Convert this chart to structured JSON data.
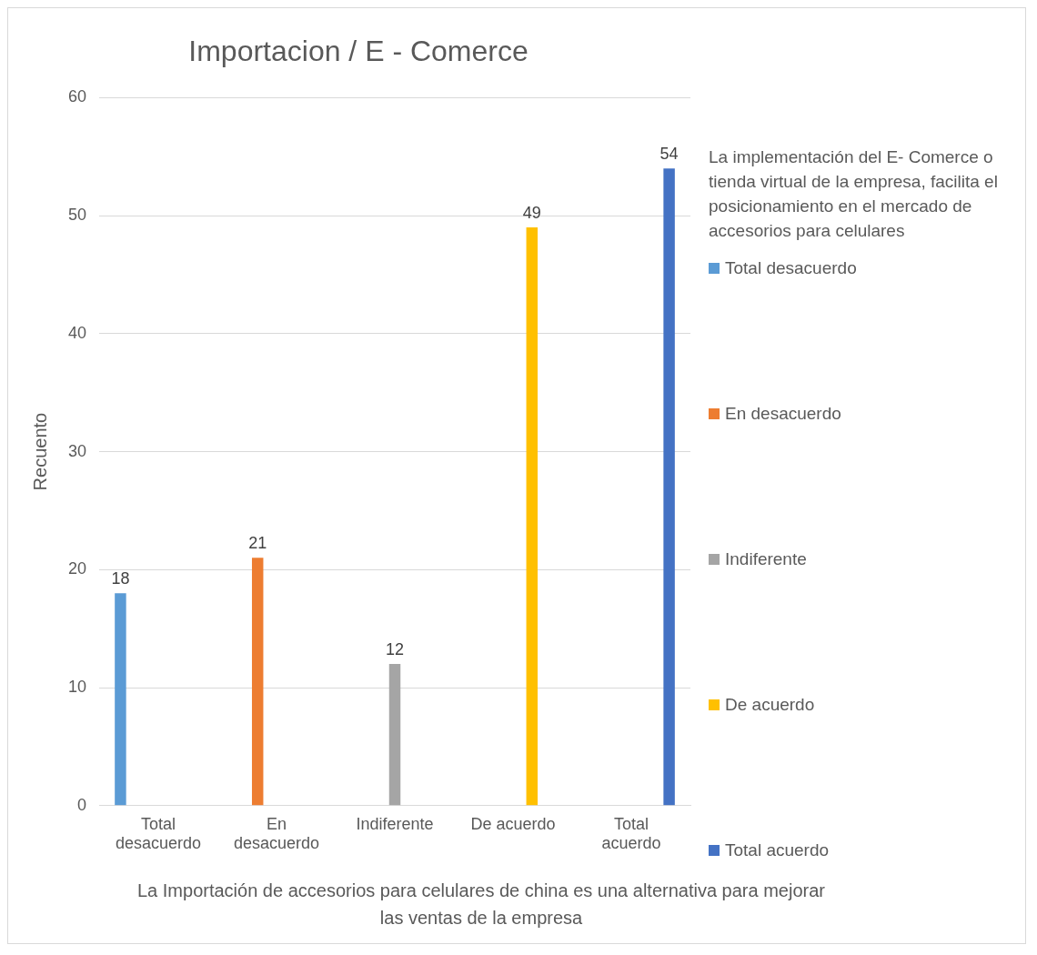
{
  "chart_data": {
    "type": "bar",
    "title": "Importacion / E - Comerce",
    "xlabel": "La Importación de accesorios para celulares de china es una alternativa para mejorar las ventas de la empresa",
    "ylabel": "Recuento",
    "legend_title": "La implementación del E- Comerce o tienda virtual de la empresa, facilita el posicionamiento en el mercado de accesorios para celulares",
    "categories": [
      "Total desacuerdo",
      "En desacuerdo",
      "Indiferente",
      "De acuerdo",
      "Total acuerdo"
    ],
    "series": [
      {
        "name": "Total desacuerdo",
        "color": "#5b9bd5",
        "values": [
          18,
          null,
          null,
          null,
          null
        ]
      },
      {
        "name": "En desacuerdo",
        "color": "#ed7d31",
        "values": [
          null,
          21,
          null,
          null,
          null
        ]
      },
      {
        "name": "Indiferente",
        "color": "#a5a5a5",
        "values": [
          null,
          null,
          12,
          null,
          null
        ]
      },
      {
        "name": "De acuerdo",
        "color": "#ffc000",
        "values": [
          null,
          null,
          null,
          49,
          null
        ]
      },
      {
        "name": "Total acuerdo",
        "color": "#4472c4",
        "values": [
          null,
          null,
          null,
          null,
          54
        ]
      }
    ],
    "ylim": [
      0,
      60
    ],
    "yticks": [
      0,
      10,
      20,
      30,
      40,
      50,
      60
    ],
    "grid": "y",
    "legend": "right",
    "data_labels": true
  }
}
